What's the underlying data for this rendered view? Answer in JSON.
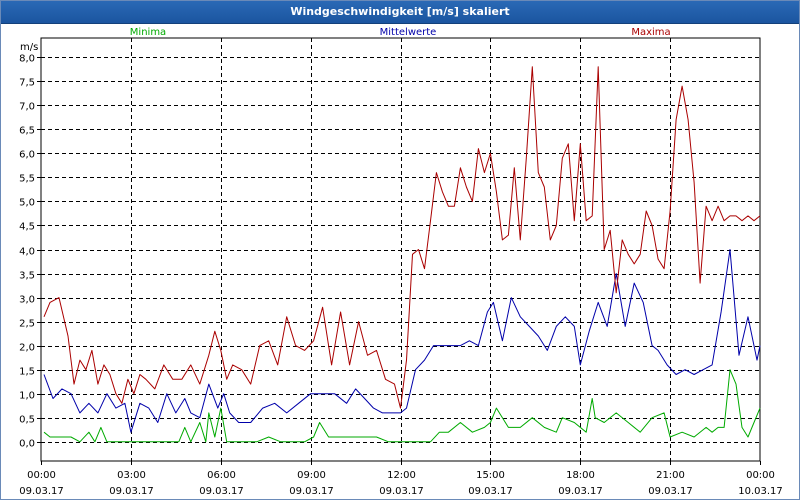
{
  "window": {
    "title": "Windgeschwindigkeit [m/s] skaliert"
  },
  "chart_data": {
    "type": "line",
    "title": "Windgeschwindigkeit [m/s] skaliert",
    "ylabel": "m/s",
    "xlabel": "",
    "ylim": [
      -0.4,
      8.4
    ],
    "xlim": [
      0,
      24
    ],
    "grid": true,
    "yticks": [
      0.0,
      0.5,
      1.0,
      1.5,
      2.0,
      2.5,
      3.0,
      3.5,
      4.0,
      4.5,
      5.0,
      5.5,
      6.0,
      6.5,
      7.0,
      7.5,
      8.0
    ],
    "ytick_labels": [
      "0,0",
      "0,5",
      "1,0",
      "1,5",
      "2,0",
      "2,5",
      "3,0",
      "3,5",
      "4,0",
      "4,5",
      "5,0",
      "5,5",
      "6,0",
      "6,5",
      "7,0",
      "7,5",
      "8,0"
    ],
    "xticks": [
      {
        "pos": 0,
        "time": "00:00",
        "date": "09.03.17"
      },
      {
        "pos": 3,
        "time": "03:00",
        "date": "09.03.17"
      },
      {
        "pos": 6,
        "time": "06:00",
        "date": "09.03.17"
      },
      {
        "pos": 9,
        "time": "09:00",
        "date": "09.03.17"
      },
      {
        "pos": 12,
        "time": "12:00",
        "date": "09.03.17"
      },
      {
        "pos": 15,
        "time": "15:00",
        "date": "09.03.17"
      },
      {
        "pos": 18,
        "time": "18:00",
        "date": "09.03.17"
      },
      {
        "pos": 21,
        "time": "21:00",
        "date": "09.03.17"
      },
      {
        "pos": 24,
        "time": "00:00",
        "date": "10.03.17"
      }
    ],
    "series": [
      {
        "name": "Minima",
        "color": "#00aa00",
        "x": [
          0.1,
          0.3,
          0.6,
          1.0,
          1.3,
          1.6,
          1.8,
          2.0,
          2.2,
          2.6,
          3.0,
          3.4,
          3.8,
          4.2,
          4.6,
          4.8,
          5.0,
          5.3,
          5.5,
          5.6,
          5.8,
          6.0,
          6.2,
          6.4,
          6.8,
          7.2,
          7.6,
          8.0,
          8.4,
          8.8,
          9.1,
          9.3,
          9.6,
          10.0,
          10.4,
          10.8,
          11.2,
          11.6,
          12.0,
          12.4,
          12.7,
          13.0,
          13.3,
          13.6,
          14.0,
          14.4,
          14.8,
          15.0,
          15.2,
          15.6,
          16.0,
          16.4,
          16.8,
          17.2,
          17.4,
          17.8,
          18.2,
          18.4,
          18.5,
          18.8,
          19.2,
          19.6,
          20.0,
          20.4,
          20.8,
          21.0,
          21.4,
          21.8,
          22.2,
          22.4,
          22.6,
          22.8,
          23.0,
          23.2,
          23.4,
          23.6,
          23.8,
          24.0
        ],
        "values": [
          0.2,
          0.1,
          0.1,
          0.1,
          0.0,
          0.2,
          0.0,
          0.3,
          0.0,
          0.0,
          0.0,
          0.0,
          0.0,
          0.0,
          0.0,
          0.3,
          0.0,
          0.4,
          0.0,
          0.6,
          0.1,
          0.7,
          0.0,
          0.0,
          0.0,
          0.0,
          0.1,
          0.0,
          0.0,
          0.0,
          0.1,
          0.4,
          0.1,
          0.1,
          0.1,
          0.1,
          0.1,
          0.0,
          0.0,
          0.0,
          0.0,
          0.0,
          0.2,
          0.2,
          0.4,
          0.2,
          0.3,
          0.4,
          0.7,
          0.3,
          0.3,
          0.5,
          0.3,
          0.2,
          0.5,
          0.4,
          0.2,
          0.9,
          0.5,
          0.4,
          0.6,
          0.4,
          0.2,
          0.5,
          0.6,
          0.1,
          0.2,
          0.1,
          0.3,
          0.2,
          0.3,
          0.3,
          1.5,
          1.2,
          0.3,
          0.1,
          0.4,
          0.7
        ]
      },
      {
        "name": "Mittelwerte",
        "color": "#0000aa",
        "x": [
          0.1,
          0.4,
          0.7,
          1.0,
          1.3,
          1.6,
          1.9,
          2.2,
          2.5,
          2.8,
          3.0,
          3.3,
          3.6,
          3.9,
          4.2,
          4.5,
          4.8,
          5.0,
          5.3,
          5.6,
          5.9,
          6.1,
          6.3,
          6.6,
          7.0,
          7.4,
          7.8,
          8.2,
          8.6,
          9.0,
          9.4,
          9.8,
          10.2,
          10.5,
          10.8,
          11.1,
          11.4,
          11.7,
          12.0,
          12.2,
          12.5,
          12.8,
          13.1,
          13.4,
          13.7,
          14.0,
          14.3,
          14.6,
          14.9,
          15.1,
          15.4,
          15.7,
          16.0,
          16.3,
          16.6,
          16.9,
          17.2,
          17.5,
          17.8,
          18.0,
          18.3,
          18.6,
          18.9,
          19.2,
          19.5,
          19.8,
          20.1,
          20.4,
          20.6,
          20.9,
          21.2,
          21.5,
          21.8,
          22.1,
          22.4,
          22.7,
          23.0,
          23.3,
          23.6,
          23.9,
          24.0
        ],
        "values": [
          1.4,
          0.9,
          1.1,
          1.0,
          0.6,
          0.8,
          0.6,
          1.0,
          0.7,
          0.8,
          0.2,
          0.8,
          0.7,
          0.4,
          1.0,
          0.6,
          0.9,
          0.6,
          0.5,
          1.2,
          0.7,
          1.0,
          0.6,
          0.4,
          0.4,
          0.7,
          0.8,
          0.6,
          0.8,
          1.0,
          1.0,
          1.0,
          0.8,
          1.1,
          0.9,
          0.7,
          0.6,
          0.6,
          0.6,
          0.7,
          1.5,
          1.7,
          2.0,
          2.0,
          2.0,
          2.0,
          2.1,
          2.0,
          2.7,
          2.9,
          2.1,
          3.0,
          2.6,
          2.4,
          2.2,
          1.9,
          2.4,
          2.6,
          2.4,
          1.6,
          2.3,
          2.9,
          2.4,
          3.5,
          2.4,
          3.3,
          2.9,
          2.0,
          1.9,
          1.6,
          1.4,
          1.5,
          1.4,
          1.5,
          1.6,
          2.7,
          4.0,
          1.8,
          2.6,
          1.7,
          2.0
        ]
      },
      {
        "name": "Maxima",
        "color": "#aa0000",
        "x": [
          0.1,
          0.3,
          0.6,
          0.9,
          1.1,
          1.3,
          1.5,
          1.7,
          1.9,
          2.1,
          2.3,
          2.5,
          2.7,
          2.9,
          3.1,
          3.3,
          3.5,
          3.8,
          4.1,
          4.4,
          4.7,
          5.0,
          5.3,
          5.6,
          5.8,
          6.0,
          6.2,
          6.4,
          6.7,
          7.0,
          7.3,
          7.6,
          7.9,
          8.2,
          8.5,
          8.8,
          9.1,
          9.4,
          9.7,
          10.0,
          10.3,
          10.6,
          10.9,
          11.2,
          11.5,
          11.8,
          12.0,
          12.2,
          12.4,
          12.6,
          12.8,
          13.0,
          13.2,
          13.4,
          13.6,
          13.8,
          14.0,
          14.2,
          14.4,
          14.6,
          14.8,
          15.0,
          15.2,
          15.4,
          15.6,
          15.8,
          16.0,
          16.2,
          16.4,
          16.6,
          16.8,
          17.0,
          17.2,
          17.4,
          17.6,
          17.8,
          18.0,
          18.2,
          18.4,
          18.6,
          18.8,
          19.0,
          19.2,
          19.4,
          19.6,
          19.8,
          20.0,
          20.2,
          20.4,
          20.6,
          20.8,
          21.0,
          21.2,
          21.4,
          21.6,
          21.8,
          22.0,
          22.2,
          22.4,
          22.6,
          22.8,
          23.0,
          23.2,
          23.4,
          23.6,
          23.8,
          24.0
        ],
        "values": [
          2.6,
          2.9,
          3.0,
          2.2,
          1.2,
          1.7,
          1.5,
          1.9,
          1.2,
          1.6,
          1.4,
          1.0,
          0.8,
          1.3,
          1.0,
          1.4,
          1.3,
          1.1,
          1.6,
          1.3,
          1.3,
          1.6,
          1.2,
          1.8,
          2.3,
          1.9,
          1.3,
          1.6,
          1.5,
          1.2,
          2.0,
          2.1,
          1.6,
          2.6,
          2.0,
          1.9,
          2.1,
          2.8,
          1.6,
          2.7,
          1.6,
          2.5,
          1.8,
          1.9,
          1.3,
          1.2,
          0.7,
          1.7,
          3.9,
          4.0,
          3.6,
          4.6,
          5.6,
          5.2,
          4.9,
          4.9,
          5.7,
          5.3,
          5.0,
          6.1,
          5.6,
          6.0,
          5.2,
          4.2,
          4.3,
          5.7,
          4.2,
          5.9,
          7.8,
          5.6,
          5.3,
          4.2,
          4.5,
          5.9,
          6.2,
          4.6,
          6.2,
          4.6,
          4.7,
          7.8,
          4.0,
          4.4,
          3.1,
          4.2,
          3.9,
          3.7,
          3.9,
          4.8,
          4.5,
          3.8,
          3.6,
          4.8,
          6.7,
          7.4,
          6.7,
          5.4,
          3.3,
          4.9,
          4.6,
          4.9,
          4.6,
          4.7,
          4.7,
          4.6,
          4.7,
          4.6,
          4.7
        ]
      }
    ]
  }
}
